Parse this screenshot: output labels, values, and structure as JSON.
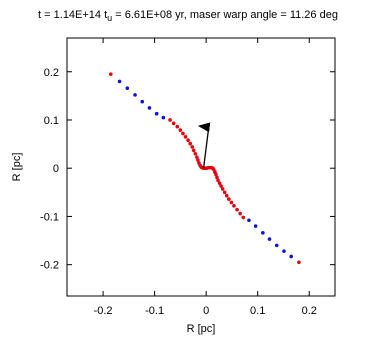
{
  "chart_data": {
    "type": "scatter",
    "title": {
      "prefix": "t =  1.14E+14 t",
      "subscript": "u",
      "suffix": " =  6.61E+08 yr, maser warp angle = 11.26 deg"
    },
    "xlabel": "R [pc]",
    "ylabel": "R [pc]",
    "xlim": [
      -0.27,
      0.25
    ],
    "ylim": [
      -0.265,
      0.27
    ],
    "x_ticks": [
      -0.2,
      -0.1,
      0,
      0.1,
      0.2
    ],
    "x_tick_labels": [
      "-0.2",
      "-0.1",
      "0",
      "0.1",
      "0.2"
    ],
    "y_ticks": [
      -0.2,
      -0.1,
      0,
      0.1,
      0.2
    ],
    "y_tick_labels": [
      "-0.2",
      "-0.1",
      "0",
      "0.1",
      "0.2"
    ],
    "grid": false,
    "colors": {
      "red": "#e8000b",
      "blue": "#1010e0",
      "arrow": "#000000"
    },
    "arrow": {
      "x0": -0.005,
      "y0": 0.0,
      "x1": 0.005,
      "y1": 0.085
    },
    "series": [
      {
        "color": "red",
        "points": [
          [
            -0.185,
            0.195
          ],
          [
            -0.07,
            0.1
          ],
          [
            -0.063,
            0.093
          ],
          [
            -0.056,
            0.086
          ],
          [
            -0.05,
            0.079
          ],
          [
            -0.045,
            0.072
          ],
          [
            -0.04,
            0.065
          ],
          [
            -0.035,
            0.058
          ],
          [
            -0.031,
            0.051
          ],
          [
            -0.027,
            0.044
          ],
          [
            -0.024,
            0.037
          ],
          [
            -0.021,
            0.03
          ],
          [
            -0.018,
            0.023
          ],
          [
            -0.016,
            0.017
          ],
          [
            -0.014,
            0.011
          ],
          [
            -0.012,
            0.006
          ],
          [
            -0.01,
            0.003
          ],
          [
            -0.008,
            0.001
          ],
          [
            -0.005,
            0.0
          ],
          [
            -0.002,
            0.0
          ],
          [
            0.001,
            0.0
          ],
          [
            0.004,
            0.001
          ],
          [
            0.007,
            0.001
          ],
          [
            0.01,
            0.001
          ],
          [
            0.013,
            0.0
          ],
          [
            0.015,
            -0.003
          ],
          [
            0.017,
            -0.008
          ],
          [
            0.019,
            -0.013
          ],
          [
            0.021,
            -0.019
          ],
          [
            0.023,
            -0.025
          ],
          [
            0.026,
            -0.031
          ],
          [
            0.029,
            -0.037
          ],
          [
            0.032,
            -0.043
          ],
          [
            0.036,
            -0.05
          ],
          [
            0.04,
            -0.057
          ],
          [
            0.044,
            -0.064
          ],
          [
            0.049,
            -0.071
          ],
          [
            0.054,
            -0.078
          ],
          [
            0.06,
            -0.086
          ],
          [
            0.066,
            -0.094
          ],
          [
            0.072,
            -0.102
          ],
          [
            0.18,
            -0.195
          ]
        ]
      },
      {
        "color": "blue",
        "points": [
          [
            -0.168,
            0.18
          ],
          [
            -0.153,
            0.166
          ],
          [
            -0.138,
            0.152
          ],
          [
            -0.124,
            0.138
          ],
          [
            -0.11,
            0.125
          ],
          [
            -0.096,
            0.113
          ],
          [
            -0.083,
            0.105
          ],
          [
            0.083,
            -0.108
          ],
          [
            0.096,
            -0.12
          ],
          [
            0.11,
            -0.134
          ],
          [
            0.123,
            -0.147
          ],
          [
            0.137,
            -0.16
          ],
          [
            0.151,
            -0.172
          ],
          [
            0.165,
            -0.183
          ]
        ]
      }
    ]
  }
}
